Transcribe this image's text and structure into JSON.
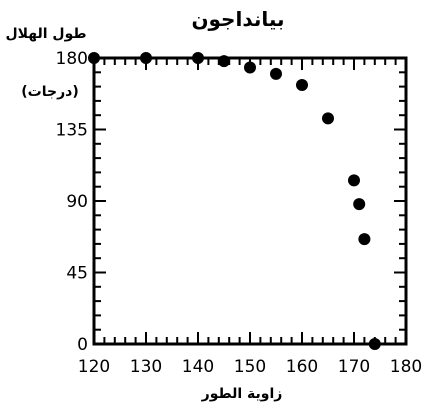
{
  "chart_data": {
    "type": "scatter",
    "title": "بيانداجون",
    "xlabel": "زاوية الطور",
    "ylabel_line1": "طول الهلال",
    "ylabel_line2": "(درجات)",
    "xlim": [
      120,
      180
    ],
    "ylim": [
      0,
      180
    ],
    "xticks": [
      120,
      130,
      140,
      150,
      160,
      170,
      180
    ],
    "yticks": [
      0,
      45,
      90,
      135,
      180
    ],
    "x": [
      120,
      130,
      140,
      145,
      150,
      155,
      160,
      165,
      170,
      171,
      172,
      174
    ],
    "y": [
      180,
      180,
      180,
      178,
      174,
      170,
      163,
      142,
      103,
      88,
      66,
      0
    ],
    "grid": false,
    "color": "#000000"
  }
}
